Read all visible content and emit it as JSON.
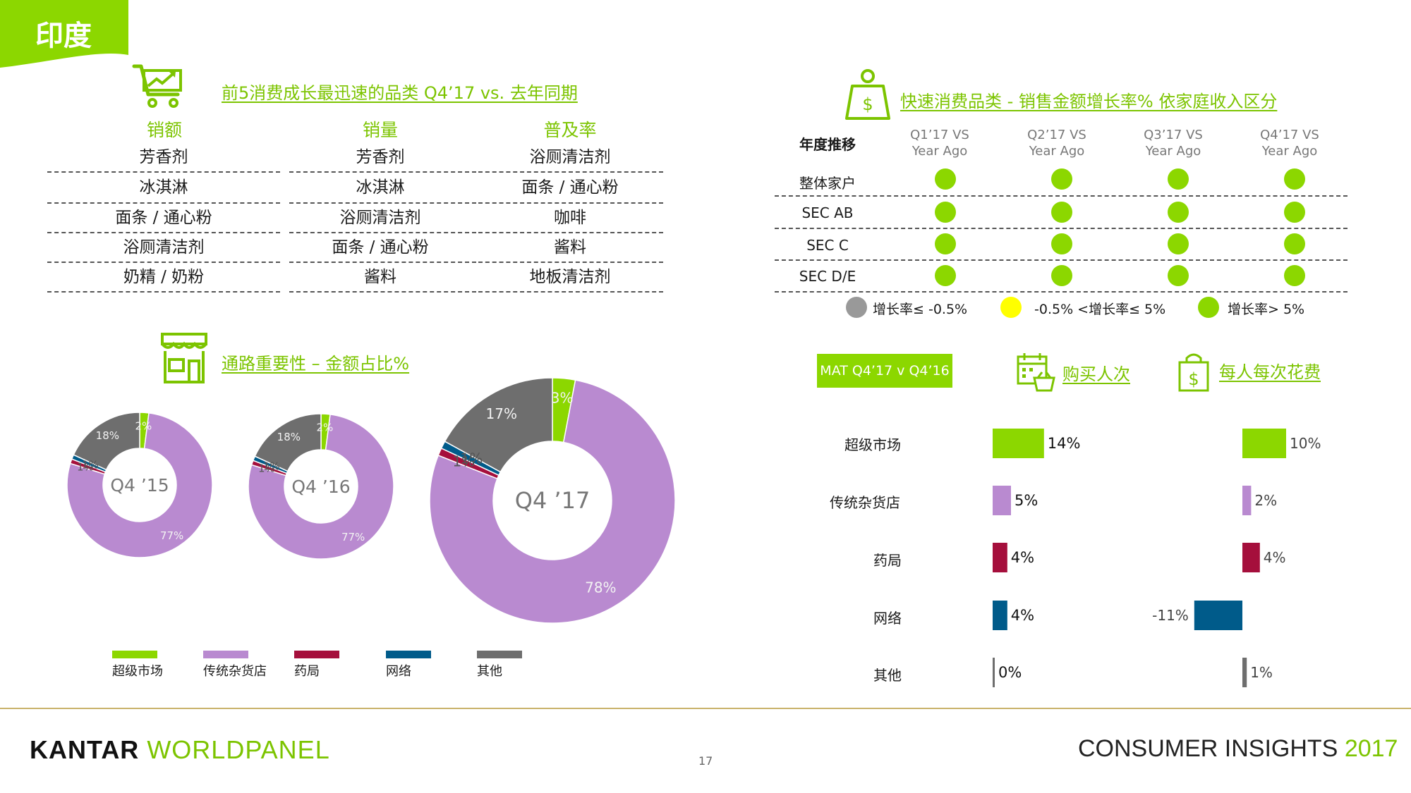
{
  "header": {
    "tag": "印度",
    "accent_color": "#8cd700"
  },
  "top_categories": {
    "title": "前5消费成长最迅速的品类 Q4’17  vs.  去年同期",
    "icon": "shopping-cart-growth-icon",
    "columns": [
      {
        "label": "销额",
        "items": [
          "芳香剂",
          "冰淇淋",
          "面条 / 通心粉",
          "浴厕清洁剂",
          "奶精 / 奶粉"
        ]
      },
      {
        "label": "销量",
        "items": [
          "芳香剂",
          "冰淇淋",
          "浴厕清洁剂",
          "面条 / 通心粉",
          "酱料"
        ]
      },
      {
        "label": "普及率",
        "items": [
          "浴厕清洁剂",
          "面条 / 通心粉",
          "咖啡",
          "酱料",
          "地板清洁剂"
        ]
      }
    ]
  },
  "income_growth": {
    "title": "快速消费品类 - 销售金额增长率% 依家庭收入区分",
    "icon": "money-bag-person-icon",
    "row_header": "年度推移",
    "quarters": [
      {
        "line1": "Q1’17 VS",
        "line2": "Year Ago"
      },
      {
        "line1": "Q2’17 VS",
        "line2": "Year Ago"
      },
      {
        "line1": "Q3’17 VS",
        "line2": "Year Ago"
      },
      {
        "line1": "Q4’17 VS",
        "line2": "Year Ago"
      }
    ],
    "rows": [
      {
        "label": "整体家户",
        "status": [
          "green",
          "green",
          "green",
          "green"
        ]
      },
      {
        "label": "SEC AB",
        "status": [
          "green",
          "green",
          "green",
          "green"
        ]
      },
      {
        "label": "SEC C",
        "status": [
          "green",
          "green",
          "green",
          "green"
        ]
      },
      {
        "label": "SEC D/E",
        "status": [
          "green",
          "green",
          "green",
          "green"
        ]
      }
    ],
    "legend": [
      {
        "label": "增长率≤ -0.5%",
        "color": "#999999"
      },
      {
        "label": "-0.5% <增长率≤  5%",
        "color": "#ffff00"
      },
      {
        "label": "增长率> 5%",
        "color": "#8cd700"
      }
    ],
    "status_colors": {
      "green": "#8cd700",
      "yellow": "#ffff00",
      "grey": "#999999"
    }
  },
  "channel_share": {
    "title": "通路重要性 – 金额占比%",
    "icon": "store-icon",
    "legend": [
      {
        "label": "超级市场",
        "color": "#8cd700"
      },
      {
        "label": "传统杂货店",
        "color": "#b98ad0"
      },
      {
        "label": "药局",
        "color": "#a50f3c"
      },
      {
        "label": "网络",
        "color": "#005b8a"
      },
      {
        "label": "其他",
        "color": "#6e6e6e"
      }
    ]
  },
  "mat": {
    "box_label": "MAT Q4’17 v Q4’16",
    "buyers_title": "购买人次",
    "buyers_icon": "calendar-basket-icon",
    "spend_title": "每人每次花费",
    "spend_icon": "shopping-bag-dollar-icon"
  },
  "chart_data": [
    {
      "type": "pie",
      "title": "Q4 ’15",
      "categories": [
        "超级市场",
        "传统杂货店",
        "药局",
        "网络",
        "其他"
      ],
      "values": [
        2,
        77,
        1,
        1,
        18
      ],
      "labels": [
        "2%",
        "77%",
        "1%",
        "1%",
        "18%"
      ]
    },
    {
      "type": "pie",
      "title": "Q4 ’16",
      "categories": [
        "超级市场",
        "传统杂货店",
        "药局",
        "网络",
        "其他"
      ],
      "values": [
        2,
        77,
        1,
        1,
        18
      ],
      "labels": [
        "2%",
        "77%",
        "1%",
        "1%",
        "18%"
      ]
    },
    {
      "type": "pie",
      "title": "Q4 ’17",
      "categories": [
        "超级市场",
        "传统杂货店",
        "药局",
        "网络",
        "其他"
      ],
      "values": [
        3,
        78,
        1,
        1,
        17
      ],
      "labels": [
        "3%",
        "78%",
        "1%",
        "1%",
        "17%"
      ]
    },
    {
      "type": "bar",
      "title": "购买人次",
      "categories": [
        "超级市场",
        "传统杂货店",
        "药局",
        "网络",
        "其他"
      ],
      "values": [
        14,
        5,
        4,
        4,
        0
      ],
      "labels": [
        "14%",
        "5%",
        "4%",
        "4%",
        "0%"
      ],
      "colors": [
        "#8cd700",
        "#b98ad0",
        "#a50f3c",
        "#005b8a",
        "#6e6e6e"
      ]
    },
    {
      "type": "bar",
      "title": "每人每次花费",
      "categories": [
        "超级市场",
        "传统杂货店",
        "药局",
        "网络",
        "其他"
      ],
      "values": [
        10,
        2,
        4,
        -11,
        1
      ],
      "labels": [
        "10%",
        "2%",
        "4%",
        "-11%",
        "1%"
      ],
      "colors": [
        "#8cd700",
        "#b98ad0",
        "#a50f3c",
        "#005b8a",
        "#6e6e6e"
      ]
    }
  ],
  "footer": {
    "brand_part1": "KANTAR",
    "brand_part2": "WORLDPANEL",
    "page_number": "17",
    "insights": "CONSUMER INSIGHTS",
    "year": "2017"
  }
}
